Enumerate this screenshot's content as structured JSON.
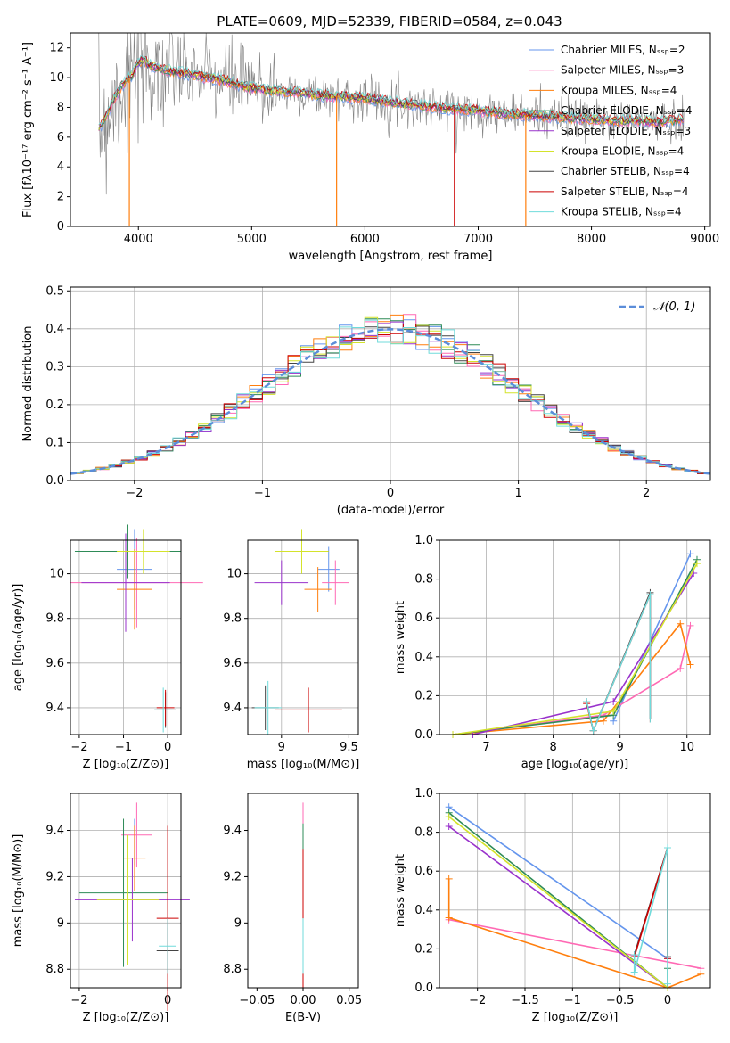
{
  "figure": {
    "title": "PLATE=0609, MJD=52339, FIBERID=0584, z=0.043"
  },
  "chart_data": [
    {
      "id": "spectrum",
      "type": "line",
      "xlabel": "wavelength [Angstrom, rest frame]",
      "ylabel": "Flux [fλ10⁻¹⁷ erg cm⁻² s⁻¹ A⁻¹]",
      "xlim": [
        3400,
        9050
      ],
      "ylim": [
        0,
        13
      ],
      "xticks": [
        4000,
        5000,
        6000,
        7000,
        8000,
        9000
      ],
      "yticks": [
        0,
        2,
        4,
        6,
        8,
        10,
        12
      ],
      "grid": false,
      "legend_position": "upper-right",
      "data_series": {
        "name": "",
        "color": "#808080",
        "x": [
          3650,
          3700,
          3750,
          3800,
          3850,
          3900,
          3950,
          4000,
          4050,
          4100,
          4200,
          4300,
          4400,
          4500,
          4600,
          4700,
          4800,
          4900,
          5000,
          5200,
          5400,
          5600,
          5800,
          6000,
          6200,
          6400,
          6600,
          6800,
          7000,
          7200,
          7400,
          7600,
          7800,
          8000,
          8200,
          8400,
          8600,
          8800
        ],
        "y": [
          6.5,
          7.2,
          8.0,
          8.8,
          9.4,
          9.8,
          10.2,
          11.0,
          11.2,
          10.8,
          10.6,
          10.4,
          10.3,
          10.2,
          10.0,
          9.9,
          9.7,
          9.5,
          9.3,
          9.1,
          9.0,
          8.8,
          8.7,
          8.6,
          8.4,
          8.2,
          8.0,
          7.9,
          7.8,
          7.6,
          7.5,
          7.4,
          7.3,
          7.2,
          7.1,
          7.1,
          7.0,
          7.2
        ]
      },
      "series": [
        {
          "name": "Chabrier MILES, N_SSP=2",
          "color": "#6495ed"
        },
        {
          "name": "Salpeter MILES, N_SSP=3",
          "color": "#ff69b4"
        },
        {
          "name": "Kroupa MILES, N_SSP=4",
          "color": "#ff7f0e"
        },
        {
          "name": "Chabrier ELODIE, N_SSP=4",
          "color": "#2e8b57"
        },
        {
          "name": "Salpeter ELODIE, N_SSP=3",
          "color": "#9932cc"
        },
        {
          "name": "Kroupa ELODIE, N_SSP=4",
          "color": "#d4e32b"
        },
        {
          "name": "Chabrier STELIB, N_SSP=4",
          "color": "#444444"
        },
        {
          "name": "Salpeter STELIB, N_SSP=4",
          "color": "#cc0000"
        },
        {
          "name": "Kroupa STELIB, N_SSP=4",
          "color": "#70dbdb"
        }
      ]
    },
    {
      "id": "residuals",
      "type": "line",
      "xlabel": "(data-model)/error",
      "ylabel": "Normed distribution",
      "xlim": [
        -2.5,
        2.5
      ],
      "ylim": [
        0,
        0.51
      ],
      "xticks": [
        -2,
        -1,
        0,
        1,
        2
      ],
      "yticks": [
        0.0,
        0.1,
        0.2,
        0.3,
        0.4,
        0.5
      ],
      "grid": true,
      "legend_position": "upper-right",
      "legend_label": "𝒩(0, 1)",
      "reference_curve": {
        "name": "N(0,1)",
        "mean": 0,
        "sigma": 1,
        "color": "#5b8dd9"
      },
      "bin_width": 0.1,
      "bin_start": -2.5
    },
    {
      "id": "age-vs-Z",
      "type": "scatter",
      "xlabel": "Z [log₁₀(Z/Z⊙)]",
      "ylabel": "age  [log₁₀(age/yr)]",
      "xlim": [
        -2.2,
        0.3
      ],
      "ylim": [
        9.28,
        10.15
      ],
      "xticks": [
        -2,
        -1,
        0
      ],
      "yticks": [
        9.4,
        9.6,
        9.8,
        10.0
      ],
      "grid": true
    },
    {
      "id": "age-vs-mass",
      "type": "scatter",
      "xlabel": "mass [log₁₀(M/M⊙)]",
      "ylabel": "",
      "xlim": [
        8.75,
        9.57
      ],
      "ylim": [
        9.28,
        10.15
      ],
      "xticks": [
        9.0,
        9.5
      ],
      "yticks": [
        9.4,
        9.6,
        9.8,
        10.0
      ],
      "grid": true
    },
    {
      "id": "weight-vs-age",
      "type": "line",
      "xlabel": "age  [log₁₀(age/yr)]",
      "ylabel": "mass weight",
      "xlim": [
        6.3,
        10.35
      ],
      "ylim": [
        0,
        1.0
      ],
      "xticks": [
        7,
        8,
        9,
        10
      ],
      "yticks": [
        0.0,
        0.2,
        0.4,
        0.6,
        0.8,
        1.0
      ],
      "grid": true,
      "series": [
        {
          "name": "Chabrier MILES",
          "color": "#6495ed",
          "x": [
            8.9,
            10.05
          ],
          "y": [
            0.07,
            0.93
          ]
        },
        {
          "name": "Salpeter MILES",
          "color": "#ff69b4",
          "x": [
            6.5,
            8.75,
            9.9,
            10.05
          ],
          "y": [
            0.0,
            0.1,
            0.34,
            0.56
          ]
        },
        {
          "name": "Kroupa MILES",
          "color": "#ff7f0e",
          "x": [
            6.5,
            8.75,
            9.9,
            10.05
          ],
          "y": [
            0.0,
            0.07,
            0.57,
            0.36
          ]
        },
        {
          "name": "Chabrier ELODIE",
          "color": "#2e8b57",
          "x": [
            6.5,
            8.9,
            10.15
          ],
          "y": [
            0.0,
            0.1,
            0.9
          ]
        },
        {
          "name": "Salpeter ELODIE",
          "color": "#9932cc",
          "x": [
            6.8,
            8.9,
            10.1
          ],
          "y": [
            0.0,
            0.17,
            0.83
          ]
        },
        {
          "name": "Kroupa ELODIE",
          "color": "#d4e32b",
          "x": [
            6.5,
            8.9,
            10.15
          ],
          "y": [
            0.0,
            0.12,
            0.88
          ]
        },
        {
          "name": "Chabrier STELIB",
          "color": "#444444",
          "x": [
            8.5,
            8.6,
            9.45,
            9.45
          ],
          "y": [
            0.17,
            0.02,
            0.73,
            0.08
          ]
        },
        {
          "name": "Salpeter STELIB",
          "color": "#cc0000",
          "x": [
            8.5,
            8.6,
            9.45,
            9.45
          ],
          "y": [
            0.16,
            0.02,
            0.72,
            0.08
          ]
        },
        {
          "name": "Kroupa STELIB",
          "color": "#70dbdb",
          "x": [
            8.5,
            8.6,
            9.45,
            9.45
          ],
          "y": [
            0.17,
            0.02,
            0.72,
            0.08
          ]
        }
      ]
    },
    {
      "id": "mass-vs-Z",
      "type": "scatter",
      "xlabel": "Z [log₁₀(Z/Z⊙)]",
      "ylabel": "mass [log₁₀(M/M⊙)]",
      "xlim": [
        -2.2,
        0.3
      ],
      "ylim": [
        8.72,
        9.56
      ],
      "xticks": [
        -2,
        0
      ],
      "yticks": [
        8.8,
        9.0,
        9.2,
        9.4
      ],
      "grid": true
    },
    {
      "id": "mass-vs-ebv",
      "type": "scatter",
      "xlabel": "E(B-V)",
      "ylabel": "",
      "xlim": [
        -0.06,
        0.06
      ],
      "ylim": [
        8.72,
        9.56
      ],
      "xticks": [
        -0.05,
        0.0,
        0.05
      ],
      "xticklabels": [
        "−0.05",
        "0.00",
        "0.05"
      ],
      "yticks": [
        8.8,
        9.0,
        9.2,
        9.4
      ],
      "grid": false
    },
    {
      "id": "weight-vs-Z",
      "type": "line",
      "xlabel": "Z [log₁₀(Z/Z⊙)]",
      "ylabel": "mass weight",
      "xlim": [
        -2.4,
        0.45
      ],
      "ylim": [
        0,
        1.0
      ],
      "xticks": [
        -2.0,
        -1.5,
        -1.0,
        -0.5,
        0.0
      ],
      "yticks": [
        0.0,
        0.2,
        0.4,
        0.6,
        0.8,
        1.0
      ],
      "grid": true,
      "series": [
        {
          "name": "Chabrier MILES",
          "color": "#6495ed",
          "x": [
            -2.3,
            0.0
          ],
          "y": [
            0.93,
            0.15
          ]
        },
        {
          "name": "Salpeter MILES",
          "color": "#ff69b4",
          "x": [
            -2.3,
            0.35
          ],
          "y": [
            0.35,
            0.1
          ]
        },
        {
          "name": "Kroupa MILES",
          "color": "#ff7f0e",
          "x": [
            -2.3,
            -2.3,
            0.0,
            0.35
          ],
          "y": [
            0.56,
            0.36,
            0.0,
            0.07
          ]
        },
        {
          "name": "Chabrier ELODIE",
          "color": "#2e8b57",
          "x": [
            -2.3,
            0.0,
            0.0
          ],
          "y": [
            0.9,
            0.0,
            0.1
          ]
        },
        {
          "name": "Salpeter ELODIE",
          "color": "#9932cc",
          "x": [
            -2.3,
            0.0
          ],
          "y": [
            0.83,
            0.0
          ]
        },
        {
          "name": "Kroupa ELODIE",
          "color": "#d4e32b",
          "x": [
            -2.3,
            0.0
          ],
          "y": [
            0.88,
            0.0
          ]
        },
        {
          "name": "Chabrier STELIB",
          "color": "#444444",
          "x": [
            -0.35,
            0.0,
            0.0
          ],
          "y": [
            0.17,
            0.72,
            0.16
          ]
        },
        {
          "name": "Salpeter STELIB",
          "color": "#cc0000",
          "x": [
            -0.35,
            0.0,
            0.0
          ],
          "y": [
            0.16,
            0.72,
            0.15
          ]
        },
        {
          "name": "Kroupa STELIB",
          "color": "#70dbdb",
          "x": [
            -0.35,
            -0.35,
            0.0,
            0.0
          ],
          "y": [
            0.17,
            0.08,
            0.72,
            0.02
          ]
        }
      ]
    }
  ]
}
